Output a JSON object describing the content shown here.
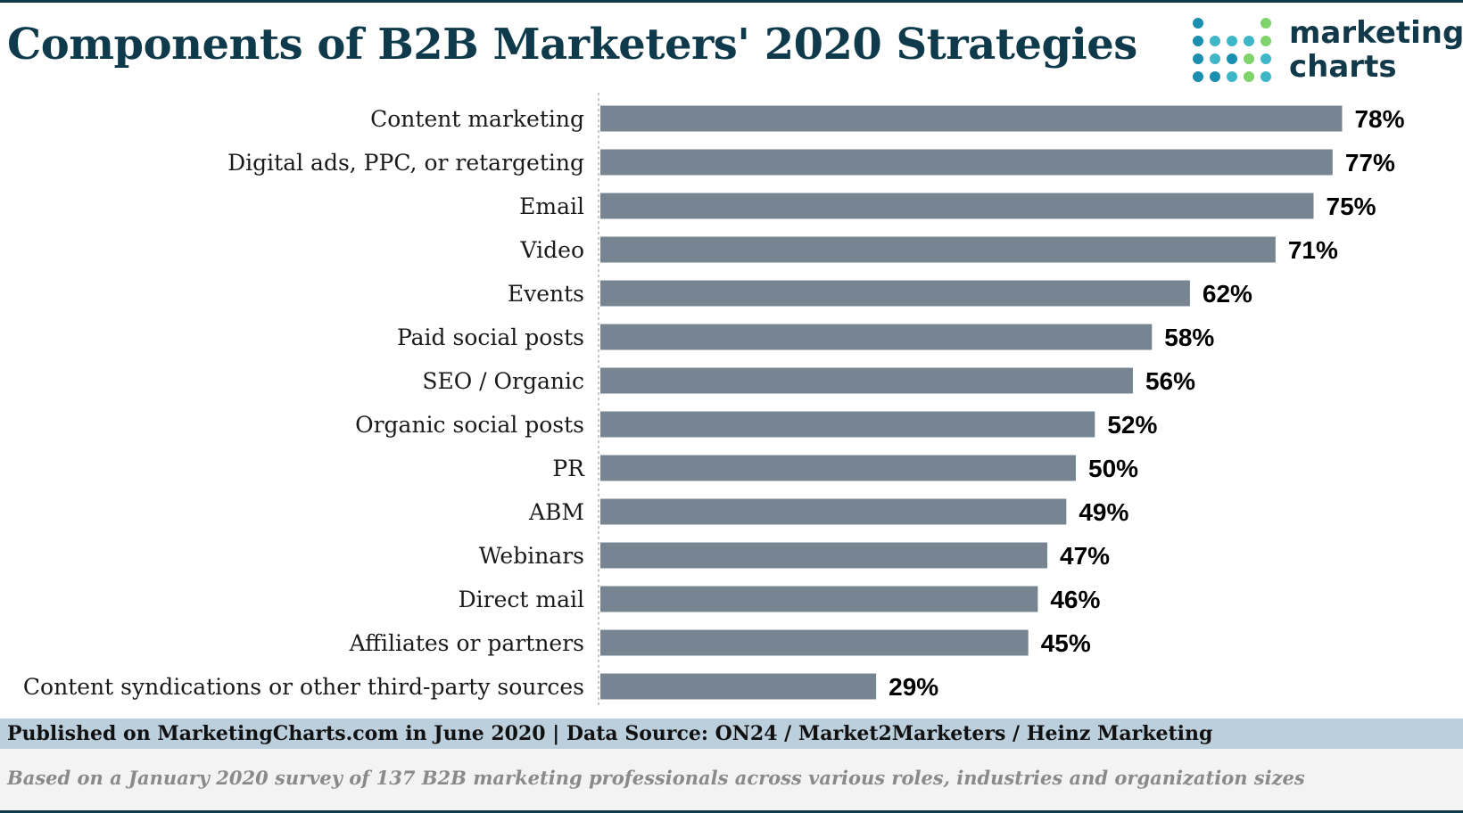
{
  "title": "Components of B2B Marketers' 2020 Strategies",
  "logo": {
    "line1": "marketing",
    "line2": "charts",
    "icon": "dot-grid-icon"
  },
  "source": "Published on MarketingCharts.com in June 2020 | Data Source: ON24 / Market2Marketers / Heinz Marketing",
  "note": "Based on a January 2020 survey of 137 B2B marketing professionals across various roles, industries and organization sizes",
  "colors": {
    "bar": "#778592",
    "title": "#0e3a4c",
    "source_bar": "#bccfdc"
  },
  "chart_data": {
    "type": "bar",
    "orientation": "horizontal",
    "categories": [
      "Content marketing",
      "Digital ads, PPC, or retargeting",
      "Email",
      "Video",
      "Events",
      "Paid social posts",
      "SEO / Organic",
      "Organic social posts",
      "PR",
      "ABM",
      "Webinars",
      "Direct mail",
      "Affiliates or partners",
      "Content syndications or other third-party sources"
    ],
    "values": [
      78,
      77,
      75,
      71,
      62,
      58,
      56,
      52,
      50,
      49,
      47,
      46,
      45,
      29
    ],
    "value_labels": [
      "78%",
      "77%",
      "75%",
      "71%",
      "62%",
      "58%",
      "56%",
      "52%",
      "50%",
      "49%",
      "47%",
      "46%",
      "45%",
      "29%"
    ],
    "xlim": [
      0,
      100
    ],
    "grid": false,
    "legend": "none"
  }
}
